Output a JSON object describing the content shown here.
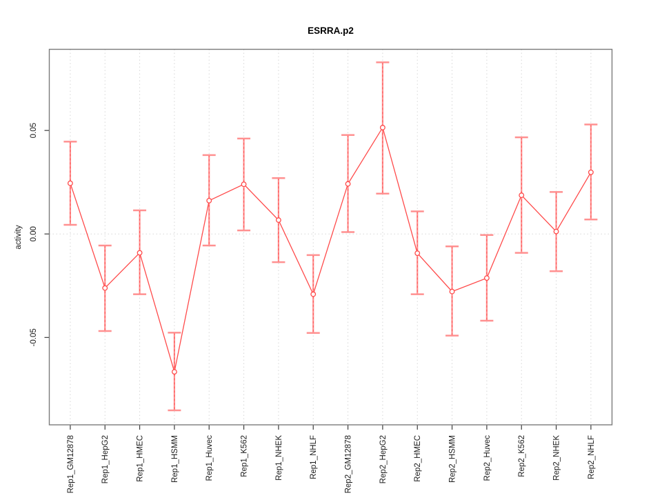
{
  "chart_data": {
    "type": "line",
    "title": "ESRRA.p2",
    "xlabel": "",
    "ylabel": "activity",
    "categories": [
      "Rep1_GM12878",
      "Rep1_HepG2",
      "Rep1_HMEC",
      "Rep1_HSMM",
      "Rep1_Huvec",
      "Rep1_K562",
      "Rep1_NHEK",
      "Rep1_NHLF",
      "Rep2_GM12878",
      "Rep2_HepG2",
      "Rep2_HMEC",
      "Rep2_HSMM",
      "Rep2_Huvec",
      "Rep2_K562",
      "Rep2_NHEK",
      "Rep2_NHLF"
    ],
    "series": [
      {
        "name": "activity",
        "values": [
          0.0245,
          -0.0261,
          -0.0091,
          -0.0666,
          0.0161,
          0.024,
          0.0067,
          -0.0291,
          0.0242,
          0.0514,
          -0.0093,
          -0.0278,
          -0.0213,
          0.0187,
          0.0012,
          0.0298
        ],
        "ci_low": [
          0.0044,
          -0.0469,
          -0.0291,
          -0.0852,
          -0.0056,
          0.0017,
          -0.0136,
          -0.0478,
          0.0009,
          0.0195,
          -0.0291,
          -0.0491,
          -0.0419,
          -0.0091,
          -0.018,
          0.007
        ],
        "ci_high": [
          0.0446,
          -0.0056,
          0.0114,
          -0.0477,
          0.0381,
          0.0461,
          0.027,
          -0.0102,
          0.0478,
          0.0829,
          0.0109,
          -0.006,
          -0.0005,
          0.0467,
          0.0203,
          0.0529
        ]
      }
    ],
    "yticks": [
      -0.05,
      0.0,
      0.05
    ],
    "ylim": [
      -0.0922,
      0.0892
    ],
    "grid": "dotted vertical line per category, dotted horizontal line at y=0",
    "legend": "none",
    "marker": "open-circle",
    "colors": {
      "line": "#ff4a4a",
      "error_bar": "#ff9090",
      "error_bar_core": "#ff5555",
      "grid": "#d6d6d6",
      "box": "#7a7a7a",
      "tick": "#3a3a3a",
      "text": "#1a1a1a"
    }
  }
}
